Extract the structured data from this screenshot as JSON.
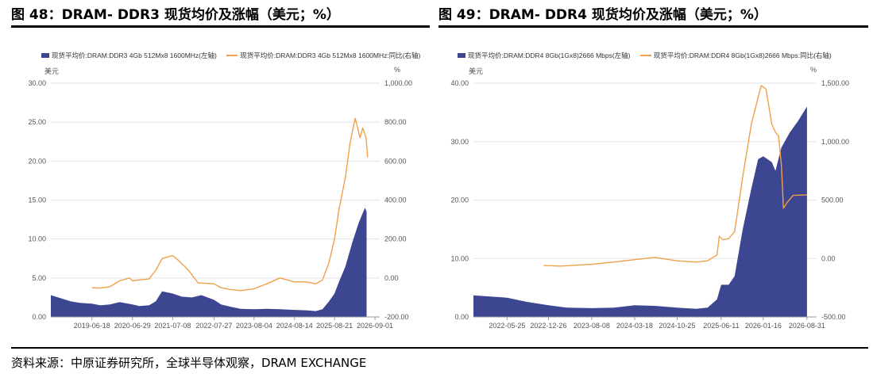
{
  "figures": [
    {
      "title": "图 48：DRAM- DDR3 现货均价及涨幅（美元；%）",
      "left_unit": "美元",
      "right_unit": "%"
    },
    {
      "title": "图 49：DRAM- DDR4 现货均价及涨幅（美元；%）",
      "left_unit": "美元",
      "right_unit": "%"
    }
  ],
  "source": "资料来源：中原证券研究所，全球半导体观察，DRAM EXCHANGE",
  "colors": {
    "area": "#3c4691",
    "line": "#f0a04b"
  },
  "chart_data": [
    {
      "type": "area",
      "title": "",
      "xlim": [
        "2018-06-01",
        "2026-10-15"
      ],
      "ylim_left": [
        0,
        30
      ],
      "ylim_right": [
        -200,
        1000
      ],
      "left_ticks": [
        "0.00",
        "5.00",
        "10.00",
        "15.00",
        "20.00",
        "25.00",
        "30.00"
      ],
      "left_tick_values": [
        0,
        5,
        10,
        15,
        20,
        25,
        30
      ],
      "right_ticks": [
        "-200.00",
        "0.00",
        "200.00",
        "400.00",
        "600.00",
        "800.00",
        "1,000.00"
      ],
      "right_tick_values": [
        -200,
        0,
        200,
        400,
        600,
        800,
        1000
      ],
      "x_ticks": [
        "2019-06-18",
        "2020-06-29",
        "2021-07-08",
        "2022-07-27",
        "2023-08-04",
        "2024-08-14",
        "2025-08-21",
        "2026-09-01"
      ],
      "grid": true,
      "legend_position": "top-left",
      "series": [
        {
          "name": "现货平均价:DRAM:DDR3 4Gb 512Mx8 1600MHz(左轴)",
          "axis": "left",
          "kind": "area",
          "points": [
            [
              "2018-06-01",
              2.8
            ],
            [
              "2018-09-01",
              2.4
            ],
            [
              "2018-12-01",
              2.0
            ],
            [
              "2019-03-01",
              1.8
            ],
            [
              "2019-06-18",
              1.7
            ],
            [
              "2019-09-01",
              1.5
            ],
            [
              "2019-12-01",
              1.6
            ],
            [
              "2020-03-01",
              1.9
            ],
            [
              "2020-06-29",
              1.6
            ],
            [
              "2020-09-01",
              1.4
            ],
            [
              "2020-12-01",
              1.5
            ],
            [
              "2021-02-01",
              2.0
            ],
            [
              "2021-04-01",
              3.3
            ],
            [
              "2021-07-08",
              3.0
            ],
            [
              "2021-10-01",
              2.6
            ],
            [
              "2022-01-01",
              2.5
            ],
            [
              "2022-04-01",
              2.8
            ],
            [
              "2022-07-27",
              2.2
            ],
            [
              "2022-10-01",
              1.6
            ],
            [
              "2023-01-01",
              1.3
            ],
            [
              "2023-04-01",
              1.05
            ],
            [
              "2023-08-04",
              1.0
            ],
            [
              "2023-12-01",
              1.05
            ],
            [
              "2024-04-01",
              1.0
            ],
            [
              "2024-08-14",
              0.9
            ],
            [
              "2024-12-01",
              0.85
            ],
            [
              "2025-03-01",
              0.75
            ],
            [
              "2025-05-01",
              1.0
            ],
            [
              "2025-07-01",
              2.0
            ],
            [
              "2025-08-21",
              3.0
            ],
            [
              "2025-10-01",
              4.5
            ],
            [
              "2025-12-01",
              6.5
            ],
            [
              "2026-02-01",
              9.5
            ],
            [
              "2026-04-01",
              12.0
            ],
            [
              "2026-05-15",
              13.5
            ],
            [
              "2026-06-01",
              14.0
            ],
            [
              "2026-06-15",
              13.5
            ]
          ]
        },
        {
          "name": "现货平均价:DRAM:DDR3 4Gb 512Mx8 1600MHz:同比(右轴)",
          "axis": "right",
          "kind": "line",
          "points": [
            [
              "2019-06-18",
              -50
            ],
            [
              "2019-09-01",
              -52
            ],
            [
              "2019-12-01",
              -45
            ],
            [
              "2020-03-01",
              -15
            ],
            [
              "2020-06-01",
              0
            ],
            [
              "2020-06-29",
              -15
            ],
            [
              "2020-09-01",
              -10
            ],
            [
              "2020-12-01",
              -5
            ],
            [
              "2021-02-01",
              40
            ],
            [
              "2021-04-01",
              100
            ],
            [
              "2021-07-08",
              115
            ],
            [
              "2021-09-01",
              90
            ],
            [
              "2021-12-01",
              40
            ],
            [
              "2022-03-01",
              -25
            ],
            [
              "2022-07-27",
              -30
            ],
            [
              "2022-10-01",
              -50
            ],
            [
              "2023-01-01",
              -60
            ],
            [
              "2023-04-01",
              -65
            ],
            [
              "2023-08-04",
              -55
            ],
            [
              "2023-12-01",
              -30
            ],
            [
              "2024-04-01",
              0
            ],
            [
              "2024-08-14",
              -20
            ],
            [
              "2024-12-01",
              -20
            ],
            [
              "2025-03-01",
              -30
            ],
            [
              "2025-05-01",
              -10
            ],
            [
              "2025-07-01",
              80
            ],
            [
              "2025-08-21",
              200
            ],
            [
              "2025-10-01",
              350
            ],
            [
              "2025-12-01",
              520
            ],
            [
              "2026-01-15",
              700
            ],
            [
              "2026-03-01",
              820
            ],
            [
              "2026-03-20",
              780
            ],
            [
              "2026-04-15",
              720
            ],
            [
              "2026-05-10",
              770
            ],
            [
              "2026-06-10",
              720
            ],
            [
              "2026-06-25",
              620
            ]
          ]
        }
      ]
    },
    {
      "type": "area",
      "title": "",
      "xlim": [
        "2021-12-01",
        "2026-10-20"
      ],
      "ylim_left": [
        0,
        40
      ],
      "ylim_right": [
        -500,
        1500
      ],
      "left_ticks": [
        "0.00",
        "10.00",
        "20.00",
        "30.00",
        "40.00"
      ],
      "left_tick_values": [
        0,
        10,
        20,
        30,
        40
      ],
      "right_ticks": [
        "-500.00",
        "0.00",
        "500.00",
        "1,000.00",
        "1,500.00"
      ],
      "right_tick_values": [
        -500,
        0,
        500,
        1000,
        1500
      ],
      "x_ticks": [
        "2022-05-25",
        "2022-12-26",
        "2023-08-08",
        "2024-03-18",
        "2024-10-25",
        "2025-06-11",
        "2026-01-16",
        "2026-08-31"
      ],
      "grid": true,
      "legend_position": "top-left",
      "series": [
        {
          "name": "现货平均价:DRAM:DDR4 8Gb(1Gx8)2666 Mbps(左轴)",
          "axis": "left",
          "kind": "area",
          "points": [
            [
              "2021-12-01",
              3.7
            ],
            [
              "2022-03-01",
              3.5
            ],
            [
              "2022-05-25",
              3.3
            ],
            [
              "2022-09-01",
              2.6
            ],
            [
              "2022-12-26",
              2.0
            ],
            [
              "2023-04-01",
              1.6
            ],
            [
              "2023-08-08",
              1.5
            ],
            [
              "2023-12-01",
              1.6
            ],
            [
              "2024-03-18",
              2.0
            ],
            [
              "2024-07-01",
              1.9
            ],
            [
              "2024-10-25",
              1.6
            ],
            [
              "2025-02-01",
              1.4
            ],
            [
              "2025-04-01",
              1.6
            ],
            [
              "2025-05-20",
              3.0
            ],
            [
              "2025-06-11",
              5.5
            ],
            [
              "2025-07-20",
              5.5
            ],
            [
              "2025-08-20",
              7.0
            ],
            [
              "2025-10-01",
              15.0
            ],
            [
              "2025-11-15",
              22.0
            ],
            [
              "2025-12-20",
              27.0
            ],
            [
              "2026-01-16",
              27.5
            ],
            [
              "2026-03-01",
              26.5
            ],
            [
              "2026-03-20",
              25.0
            ],
            [
              "2026-04-20",
              29.0
            ],
            [
              "2026-06-01",
              31.5
            ],
            [
              "2026-07-15",
              33.5
            ],
            [
              "2026-08-31",
              36.0
            ]
          ]
        },
        {
          "name": "现货平均价:DRAM:DDR4 8Gb(1Gx8)2666 Mbps:同比(右轴)",
          "axis": "right",
          "kind": "line",
          "points": [
            [
              "2022-12-01",
              -60
            ],
            [
              "2023-03-01",
              -65
            ],
            [
              "2023-08-08",
              -50
            ],
            [
              "2023-12-01",
              -30
            ],
            [
              "2024-03-18",
              -10
            ],
            [
              "2024-07-01",
              10
            ],
            [
              "2024-10-25",
              -20
            ],
            [
              "2025-02-01",
              -30
            ],
            [
              "2025-04-01",
              -20
            ],
            [
              "2025-05-20",
              30
            ],
            [
              "2025-06-01",
              190
            ],
            [
              "2025-06-20",
              160
            ],
            [
              "2025-07-20",
              170
            ],
            [
              "2025-08-20",
              230
            ],
            [
              "2025-10-01",
              700
            ],
            [
              "2025-11-15",
              1150
            ],
            [
              "2025-12-20",
              1380
            ],
            [
              "2026-01-05",
              1480
            ],
            [
              "2026-01-30",
              1450
            ],
            [
              "2026-03-01",
              1150
            ],
            [
              "2026-03-20",
              1080
            ],
            [
              "2026-04-05",
              1050
            ],
            [
              "2026-04-20",
              800
            ],
            [
              "2026-05-01",
              430
            ],
            [
              "2026-05-20",
              480
            ],
            [
              "2026-06-20",
              540
            ],
            [
              "2026-08-31",
              545
            ]
          ]
        }
      ]
    }
  ]
}
